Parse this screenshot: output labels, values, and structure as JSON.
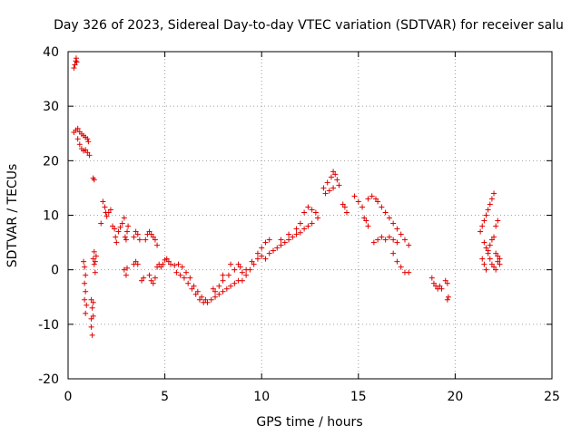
{
  "chart_data": {
    "type": "scatter",
    "title": "Day 326 of 2023, Sidereal Day-to-day VTEC variation (SDTVAR) for receiver salu",
    "xlabel": "GPS time / hours",
    "ylabel": "SDTVAR / TECUs",
    "xlim": [
      0,
      25
    ],
    "ylim": [
      -20,
      40
    ],
    "xticks": [
      0,
      5,
      10,
      15,
      20,
      25
    ],
    "yticks": [
      -20,
      -10,
      0,
      10,
      20,
      30,
      40
    ],
    "grid": true,
    "marker": "+",
    "marker_color": "#e00000",
    "series": [
      {
        "name": "SDTVAR",
        "points": [
          [
            0.3,
            37
          ],
          [
            0.35,
            37.6
          ],
          [
            0.4,
            38.3
          ],
          [
            0.42,
            38.8
          ],
          [
            0.45,
            38.1
          ],
          [
            0.3,
            25.2
          ],
          [
            0.4,
            25.6
          ],
          [
            0.5,
            25.9
          ],
          [
            0.6,
            25.3
          ],
          [
            0.7,
            24.9
          ],
          [
            0.8,
            24.6
          ],
          [
            0.9,
            24.3
          ],
          [
            1.0,
            24.0
          ],
          [
            1.05,
            23.5
          ],
          [
            0.5,
            24.0
          ],
          [
            0.6,
            23.0
          ],
          [
            0.7,
            22.2
          ],
          [
            0.8,
            21.8
          ],
          [
            0.9,
            22.0
          ],
          [
            1.0,
            21.5
          ],
          [
            1.1,
            21.0
          ],
          [
            1.3,
            16.8
          ],
          [
            1.35,
            16.5
          ],
          [
            0.8,
            1.5
          ],
          [
            0.85,
            0.5
          ],
          [
            0.9,
            -1.0
          ],
          [
            0.85,
            -2.5
          ],
          [
            0.9,
            -4.0
          ],
          [
            0.85,
            -5.5
          ],
          [
            0.95,
            -6.5
          ],
          [
            0.9,
            -8.0
          ],
          [
            1.2,
            -9.0
          ],
          [
            1.2,
            -10.5
          ],
          [
            1.25,
            -12.0
          ],
          [
            1.2,
            -5.5
          ],
          [
            1.25,
            -7.0
          ],
          [
            1.3,
            -6.0
          ],
          [
            1.3,
            -8.5
          ],
          [
            1.3,
            2.0
          ],
          [
            1.35,
            3.3
          ],
          [
            1.4,
            1.5
          ],
          [
            1.45,
            2.5
          ],
          [
            1.4,
            -0.5
          ],
          [
            1.35,
            1.0
          ],
          [
            1.7,
            8.5
          ],
          [
            1.8,
            12.5
          ],
          [
            1.9,
            11.5
          ],
          [
            1.95,
            10.5
          ],
          [
            2.0,
            9.8
          ],
          [
            2.1,
            10.5
          ],
          [
            2.2,
            11.0
          ],
          [
            2.3,
            8.0
          ],
          [
            2.4,
            7.5
          ],
          [
            2.45,
            6.0
          ],
          [
            2.5,
            5.0
          ],
          [
            2.6,
            7.0
          ],
          [
            2.7,
            7.8
          ],
          [
            2.8,
            8.5
          ],
          [
            2.9,
            9.5
          ],
          [
            2.95,
            6.0
          ],
          [
            3.0,
            5.5
          ],
          [
            3.05,
            7.0
          ],
          [
            3.1,
            8.0
          ],
          [
            2.9,
            0.0
          ],
          [
            3.0,
            -1.0
          ],
          [
            3.05,
            0.3
          ],
          [
            3.4,
            6.0
          ],
          [
            3.5,
            7.0
          ],
          [
            3.6,
            6.5
          ],
          [
            3.7,
            5.5
          ],
          [
            3.4,
            1.0
          ],
          [
            3.5,
            1.5
          ],
          [
            3.6,
            1.0
          ],
          [
            3.8,
            -2.0
          ],
          [
            3.9,
            -1.5
          ],
          [
            4.0,
            5.5
          ],
          [
            4.1,
            6.5
          ],
          [
            4.2,
            7.0
          ],
          [
            4.3,
            6.5
          ],
          [
            4.4,
            6.0
          ],
          [
            4.5,
            5.5
          ],
          [
            4.6,
            4.5
          ],
          [
            4.2,
            -1.0
          ],
          [
            4.3,
            -2.0
          ],
          [
            4.4,
            -2.5
          ],
          [
            4.5,
            -1.5
          ],
          [
            4.6,
            0.5
          ],
          [
            4.7,
            1.0
          ],
          [
            4.8,
            0.5
          ],
          [
            4.9,
            1.0
          ],
          [
            5.0,
            1.8
          ],
          [
            5.1,
            2.0
          ],
          [
            5.2,
            1.5
          ],
          [
            5.3,
            1.0
          ],
          [
            5.5,
            0.8
          ],
          [
            5.6,
            -0.5
          ],
          [
            5.8,
            -1.0
          ],
          [
            6.0,
            -1.5
          ],
          [
            6.2,
            -2.5
          ],
          [
            6.4,
            -3.5
          ],
          [
            6.6,
            -4.5
          ],
          [
            6.8,
            -5.5
          ],
          [
            7.0,
            -6.0
          ],
          [
            7.2,
            -6.0
          ],
          [
            5.7,
            1.0
          ],
          [
            5.9,
            0.5
          ],
          [
            6.1,
            -0.5
          ],
          [
            6.3,
            -1.5
          ],
          [
            6.5,
            -3.0
          ],
          [
            6.7,
            -4.0
          ],
          [
            6.9,
            -5.0
          ],
          [
            7.1,
            -5.5
          ],
          [
            7.4,
            -5.5
          ],
          [
            7.6,
            -5.0
          ],
          [
            7.8,
            -4.5
          ],
          [
            8.0,
            -4.0
          ],
          [
            8.2,
            -3.5
          ],
          [
            8.4,
            -3.0
          ],
          [
            8.6,
            -2.5
          ],
          [
            8.8,
            -2.0
          ],
          [
            7.5,
            -3.5
          ],
          [
            7.8,
            -3.0
          ],
          [
            8.0,
            -2.0
          ],
          [
            8.3,
            -1.0
          ],
          [
            8.6,
            0.0
          ],
          [
            8.9,
            0.5
          ],
          [
            7.6,
            -4.0
          ],
          [
            8.0,
            -1.0
          ],
          [
            8.4,
            1.0
          ],
          [
            8.8,
            1.0
          ],
          [
            9.0,
            -0.5
          ],
          [
            9.0,
            -2.0
          ],
          [
            9.2,
            -1.0
          ],
          [
            9.4,
            0.0
          ],
          [
            9.6,
            1.0
          ],
          [
            9.8,
            2.0
          ],
          [
            10.0,
            2.5
          ],
          [
            9.2,
            0.0
          ],
          [
            9.5,
            1.5
          ],
          [
            9.8,
            3.0
          ],
          [
            10.0,
            4.0
          ],
          [
            10.2,
            5.0
          ],
          [
            10.4,
            5.5
          ],
          [
            10.2,
            2.0
          ],
          [
            10.4,
            3.0
          ],
          [
            10.6,
            3.5
          ],
          [
            10.8,
            4.0
          ],
          [
            11.0,
            4.5
          ],
          [
            11.2,
            5.0
          ],
          [
            11.4,
            5.5
          ],
          [
            11.6,
            6.0
          ],
          [
            11.8,
            6.5
          ],
          [
            12.0,
            6.8
          ],
          [
            12.2,
            7.5
          ],
          [
            12.4,
            8.0
          ],
          [
            12.6,
            8.5
          ],
          [
            11.0,
            5.5
          ],
          [
            11.4,
            6.5
          ],
          [
            11.8,
            7.5
          ],
          [
            12.0,
            8.5
          ],
          [
            12.2,
            10.5
          ],
          [
            12.4,
            11.5
          ],
          [
            12.6,
            11.0
          ],
          [
            12.8,
            10.5
          ],
          [
            12.9,
            9.5
          ],
          [
            13.2,
            15.0
          ],
          [
            13.4,
            16.0
          ],
          [
            13.6,
            17.0
          ],
          [
            13.7,
            18.0
          ],
          [
            13.8,
            17.5
          ],
          [
            13.9,
            16.5
          ],
          [
            14.0,
            15.5
          ],
          [
            13.3,
            14.0
          ],
          [
            13.5,
            14.5
          ],
          [
            13.7,
            15.0
          ],
          [
            14.2,
            12.0
          ],
          [
            14.3,
            11.5
          ],
          [
            14.4,
            10.5
          ],
          [
            14.8,
            13.5
          ],
          [
            15.0,
            12.5
          ],
          [
            15.2,
            11.5
          ],
          [
            15.3,
            9.5
          ],
          [
            15.4,
            9.0
          ],
          [
            15.5,
            8.0
          ],
          [
            15.5,
            13.0
          ],
          [
            15.7,
            13.5
          ],
          [
            15.9,
            13.0
          ],
          [
            16.0,
            12.5
          ],
          [
            16.2,
            11.5
          ],
          [
            16.4,
            10.5
          ],
          [
            16.6,
            9.5
          ],
          [
            16.8,
            8.5
          ],
          [
            17.0,
            7.5
          ],
          [
            17.2,
            6.5
          ],
          [
            17.4,
            5.5
          ],
          [
            17.6,
            4.5
          ],
          [
            15.8,
            5.0
          ],
          [
            16.0,
            5.5
          ],
          [
            16.2,
            6.0
          ],
          [
            16.4,
            5.5
          ],
          [
            16.6,
            6.0
          ],
          [
            16.8,
            5.5
          ],
          [
            17.0,
            5.0
          ],
          [
            16.8,
            3.0
          ],
          [
            17.0,
            1.5
          ],
          [
            17.2,
            0.5
          ],
          [
            17.4,
            -0.5
          ],
          [
            17.6,
            -0.5
          ],
          [
            18.8,
            -1.5
          ],
          [
            18.9,
            -2.5
          ],
          [
            19.0,
            -3.0
          ],
          [
            19.1,
            -3.5
          ],
          [
            19.2,
            -3.0
          ],
          [
            19.3,
            -3.5
          ],
          [
            19.5,
            -2.0
          ],
          [
            19.6,
            -2.5
          ],
          [
            19.6,
            -5.5
          ],
          [
            19.65,
            -5.0
          ],
          [
            21.3,
            7.0
          ],
          [
            21.4,
            8.0
          ],
          [
            21.5,
            9.0
          ],
          [
            21.6,
            10.0
          ],
          [
            21.7,
            11.0
          ],
          [
            21.8,
            12.0
          ],
          [
            21.9,
            13.0
          ],
          [
            22.0,
            14.0
          ],
          [
            21.5,
            5.0
          ],
          [
            21.6,
            4.0
          ],
          [
            21.7,
            3.0
          ],
          [
            21.8,
            2.0
          ],
          [
            21.9,
            1.0
          ],
          [
            22.0,
            0.5
          ],
          [
            22.1,
            0.0
          ],
          [
            22.2,
            1.5
          ],
          [
            21.4,
            2.0
          ],
          [
            21.5,
            1.0
          ],
          [
            21.6,
            0.0
          ],
          [
            21.7,
            3.5
          ],
          [
            21.8,
            4.5
          ],
          [
            21.9,
            5.5
          ],
          [
            22.0,
            6.0
          ],
          [
            22.1,
            8.0
          ],
          [
            22.2,
            9.0
          ],
          [
            22.1,
            3.0
          ],
          [
            22.2,
            2.5
          ],
          [
            22.3,
            2.0
          ],
          [
            22.3,
            1.0
          ]
        ]
      }
    ]
  }
}
